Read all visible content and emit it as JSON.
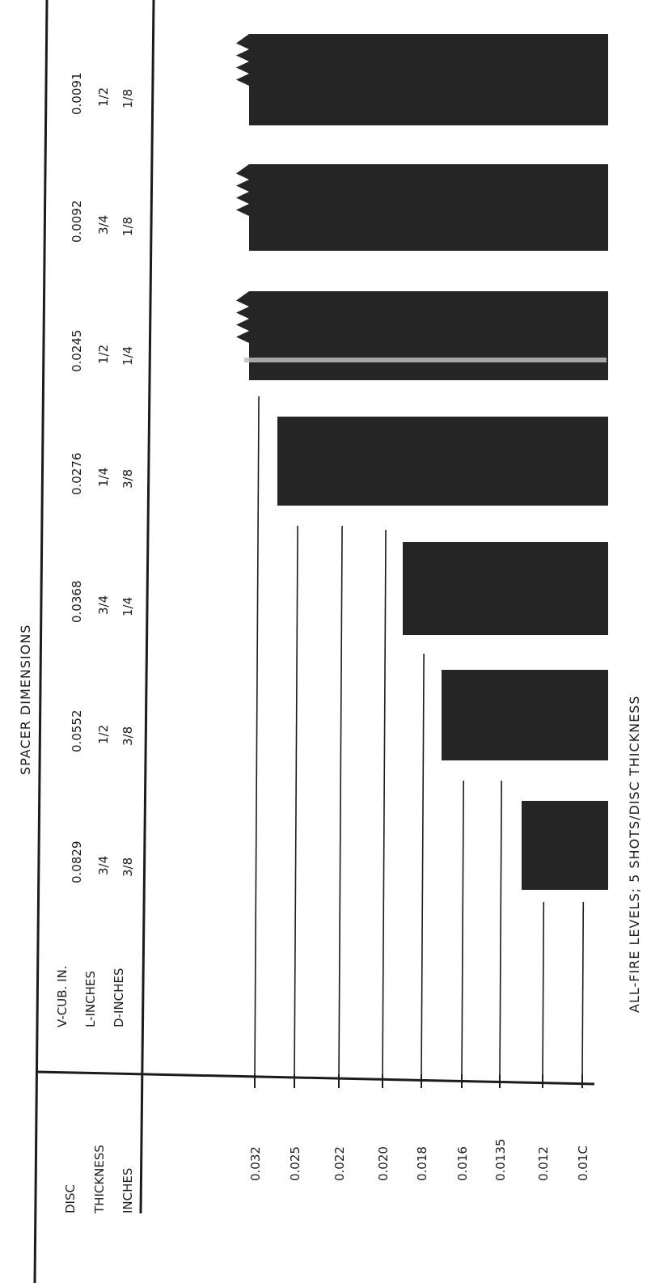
{
  "chart_data": {
    "type": "bar",
    "orientation": "horizontal",
    "title": "SPACER DIMENSIONS",
    "caption": "ALL-FIRE LEVELS; 5 SHOTS/DISC THICKNESS",
    "header": {
      "column_title": [
        "DISC",
        "THICKNESS",
        "INCHES"
      ],
      "row_labels": [
        "V-CUB. IN.",
        "L-INCHES",
        "D-INCHES"
      ]
    },
    "spacers": [
      {
        "v": "0.0829",
        "l": "3/4",
        "d": "3/8",
        "bar_start": 0.0135,
        "bar_end": 0.012,
        "notched": false,
        "streak": false
      },
      {
        "v": "0.0552",
        "l": "1/2",
        "d": "3/8",
        "bar_start": 0.018,
        "bar_end": 0.016,
        "notched": false,
        "streak": false
      },
      {
        "v": "0.0368",
        "l": "3/4",
        "d": "1/4",
        "bar_start": 0.02,
        "bar_end": 0.018,
        "notched": false,
        "streak": false
      },
      {
        "v": "0.0276",
        "l": "1/4",
        "d": "3/8",
        "bar_start": 0.025,
        "bar_end": 0.022,
        "notched": false,
        "streak": false
      },
      {
        "v": "0.0245",
        "l": "1/2",
        "d": "1/4",
        "bar_start": 0.032,
        "bar_end": 0.032,
        "notched": true,
        "streak": true
      },
      {
        "v": "0.0092",
        "l": "3/4",
        "d": "1/8",
        "bar_start": 0.032,
        "bar_end": 0.032,
        "notched": true,
        "streak": false
      },
      {
        "v": "0.0091",
        "l": "1/2",
        "d": "1/8",
        "bar_start": 0.032,
        "bar_end": 0.032,
        "notched": true,
        "streak": false
      }
    ],
    "thickness_levels": [
      {
        "label": "0.032",
        "value": 0.032
      },
      {
        "label": "0.025",
        "value": 0.025
      },
      {
        "label": "0.022",
        "value": 0.022
      },
      {
        "label": "0.020",
        "value": 0.02
      },
      {
        "label": "0.018",
        "value": 0.018
      },
      {
        "label": "0.016",
        "value": 0.016
      },
      {
        "label": "0.0135",
        "value": 0.0135
      },
      {
        "label": "0.012",
        "value": 0.012
      },
      {
        "label": "0.01C",
        "value": 0.01
      }
    ],
    "colors": {
      "bar": "#252525",
      "ink": "#1c1c1c",
      "streak": "#bdbdbd"
    }
  }
}
